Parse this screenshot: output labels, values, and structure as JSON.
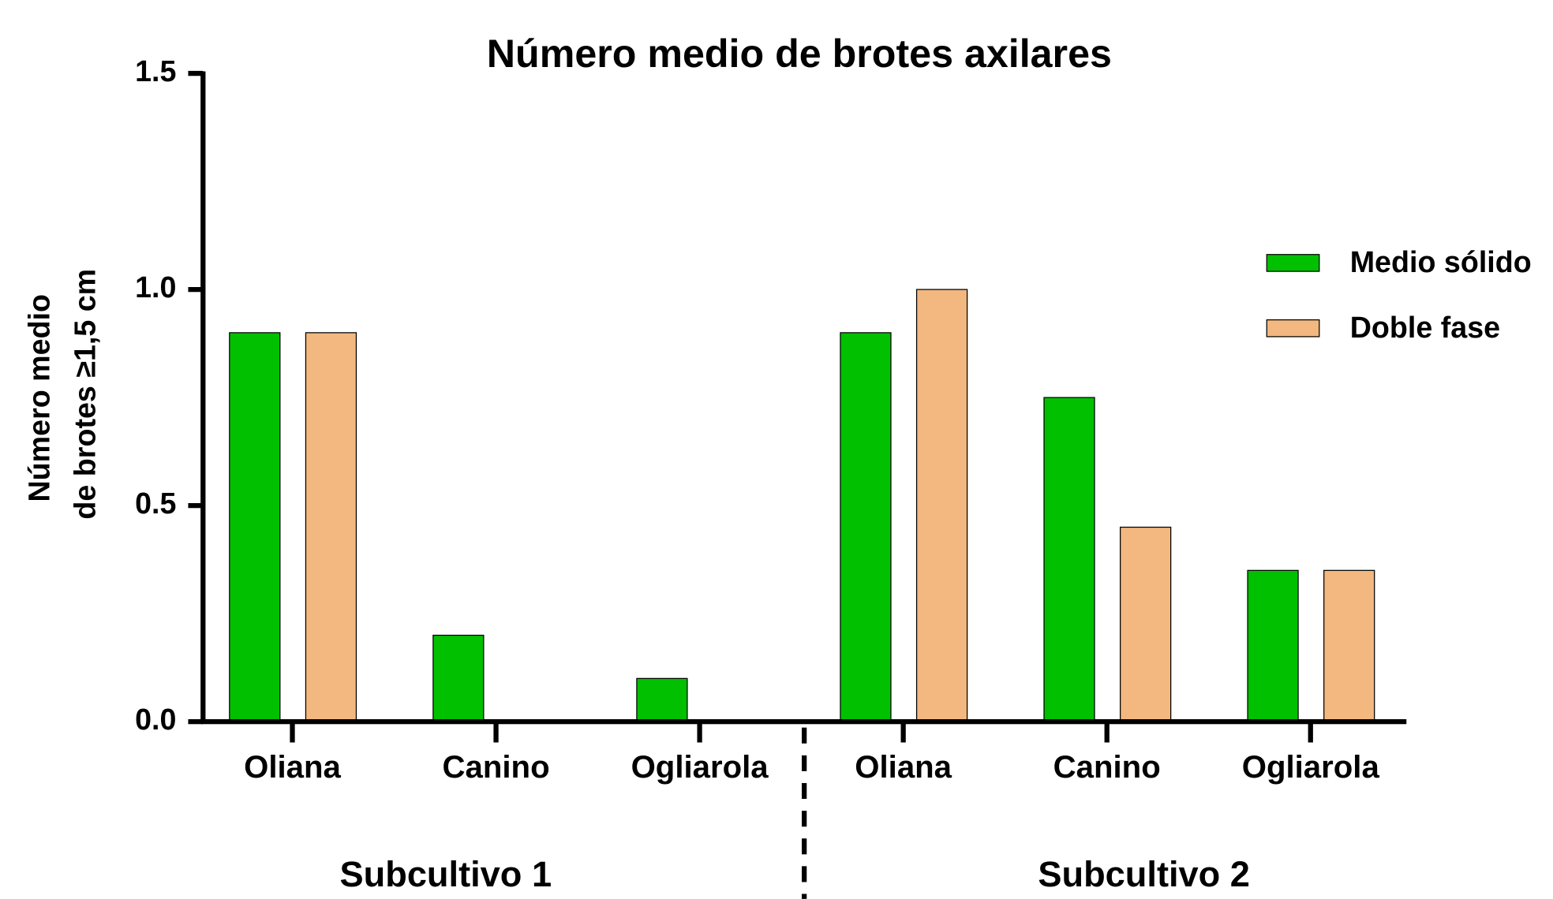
{
  "chart_data": {
    "type": "bar",
    "title": "Número medio de brotes axilares",
    "ylabel": [
      "Número  medio",
      "de brotes ≥1,5 cm"
    ],
    "categories": [
      "Oliana",
      "Canino",
      "Ogliarola",
      "Oliana",
      "Canino",
      "Ogliarola"
    ],
    "groups": [
      "Subcultivo 1",
      "Subcultivo 2"
    ],
    "series": [
      {
        "name": "Medio sólido",
        "color": "#00c000",
        "values": [
          0.9,
          0.2,
          0.1,
          0.9,
          0.75,
          0.35
        ]
      },
      {
        "name": "Doble fase",
        "color": "#f2b880",
        "values": [
          0.9,
          0,
          0,
          1.0,
          0.45,
          0.35
        ]
      }
    ],
    "ylim": [
      0,
      1.5
    ],
    "yticks": [
      {
        "value": 0,
        "label": "0.0"
      },
      0.5,
      {
        "value": 1,
        "label": "1.0"
      },
      1.5
    ]
  }
}
